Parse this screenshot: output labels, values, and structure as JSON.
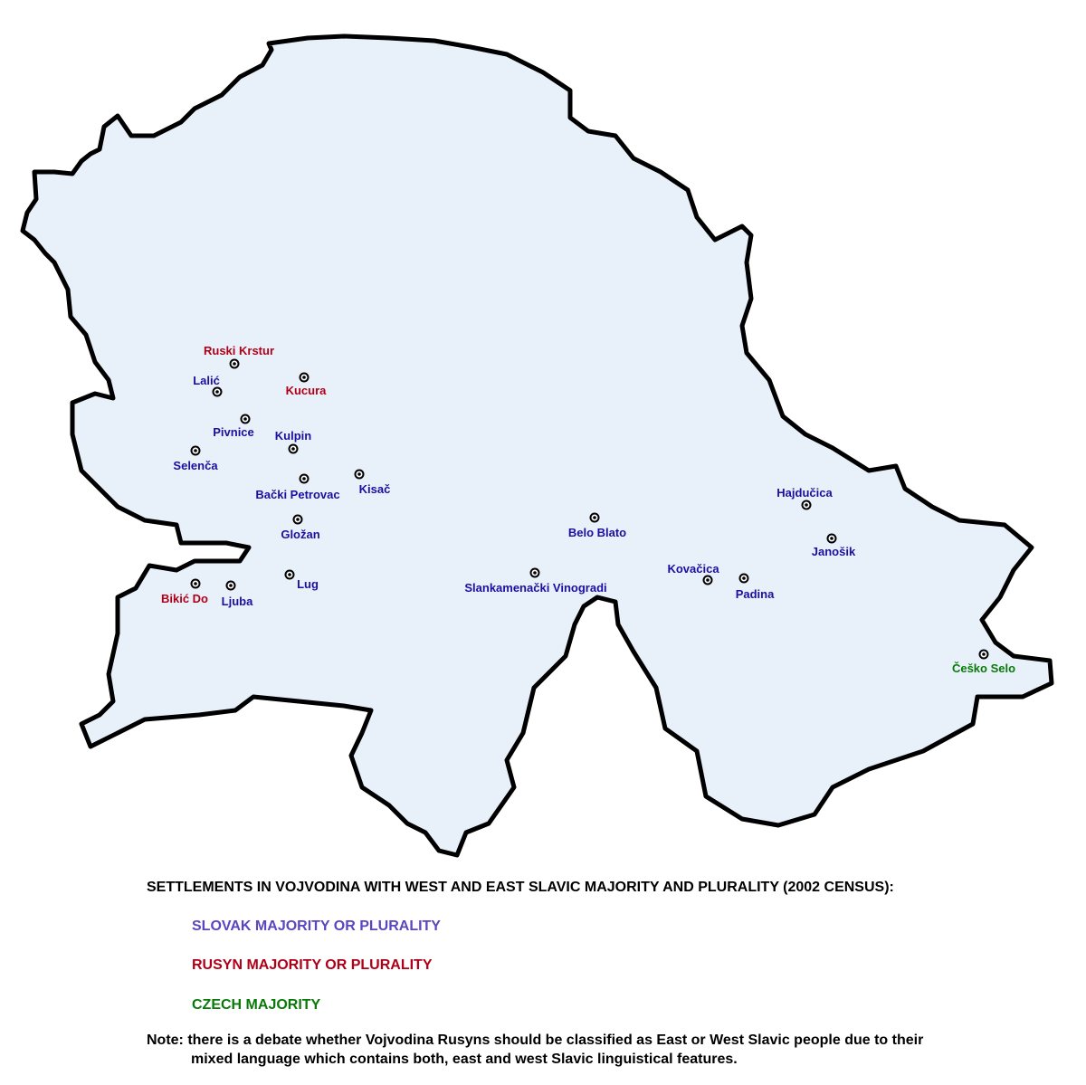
{
  "colors": {
    "land": "#e8f0fa",
    "border": "#000000",
    "slovak_label": "#1c0fa0",
    "slovak_legend": "#5a46c0",
    "rusyn": "#b00018",
    "czech": "#087a08"
  },
  "cities": [
    {
      "name": "Ruski Krstur",
      "group": "rusyn"
    },
    {
      "name": "Lalić",
      "group": "slovak"
    },
    {
      "name": "Kucura",
      "group": "rusyn"
    },
    {
      "name": "Pivnice",
      "group": "slovak"
    },
    {
      "name": "Kulpin",
      "group": "slovak"
    },
    {
      "name": "Selenča",
      "group": "slovak"
    },
    {
      "name": "Bački Petrovac",
      "group": "slovak"
    },
    {
      "name": "Kisač",
      "group": "slovak"
    },
    {
      "name": "Gložan",
      "group": "slovak"
    },
    {
      "name": "Lug",
      "group": "slovak"
    },
    {
      "name": "Bikić Do",
      "group": "rusyn"
    },
    {
      "name": "Ljuba",
      "group": "slovak"
    },
    {
      "name": "Belo Blato",
      "group": "slovak"
    },
    {
      "name": "Slankamenački Vinogradi",
      "group": "slovak"
    },
    {
      "name": "Kovačica",
      "group": "slovak"
    },
    {
      "name": "Padina",
      "group": "slovak"
    },
    {
      "name": "Hajdučica",
      "group": "slovak"
    },
    {
      "name": "Janošik",
      "group": "slovak"
    },
    {
      "name": "Češko Selo",
      "group": "czech"
    }
  ],
  "legend": {
    "title": "SETTLEMENTS IN VOJVODINA WITH WEST AND EAST SLAVIC MAJORITY AND PLURALITY (2002 CENSUS):",
    "slovak": "SLOVAK MAJORITY OR PLURALITY",
    "rusyn": "RUSYN MAJORITY OR PLURALITY",
    "czech": "CZECH MAJORITY"
  },
  "note": {
    "line1": "Note: there is a debate whether Vojvodina Rusyns should be classified as East or West Slavic people due to their",
    "line2": "mixed language which contains both, east and west Slavic linguistical features."
  }
}
